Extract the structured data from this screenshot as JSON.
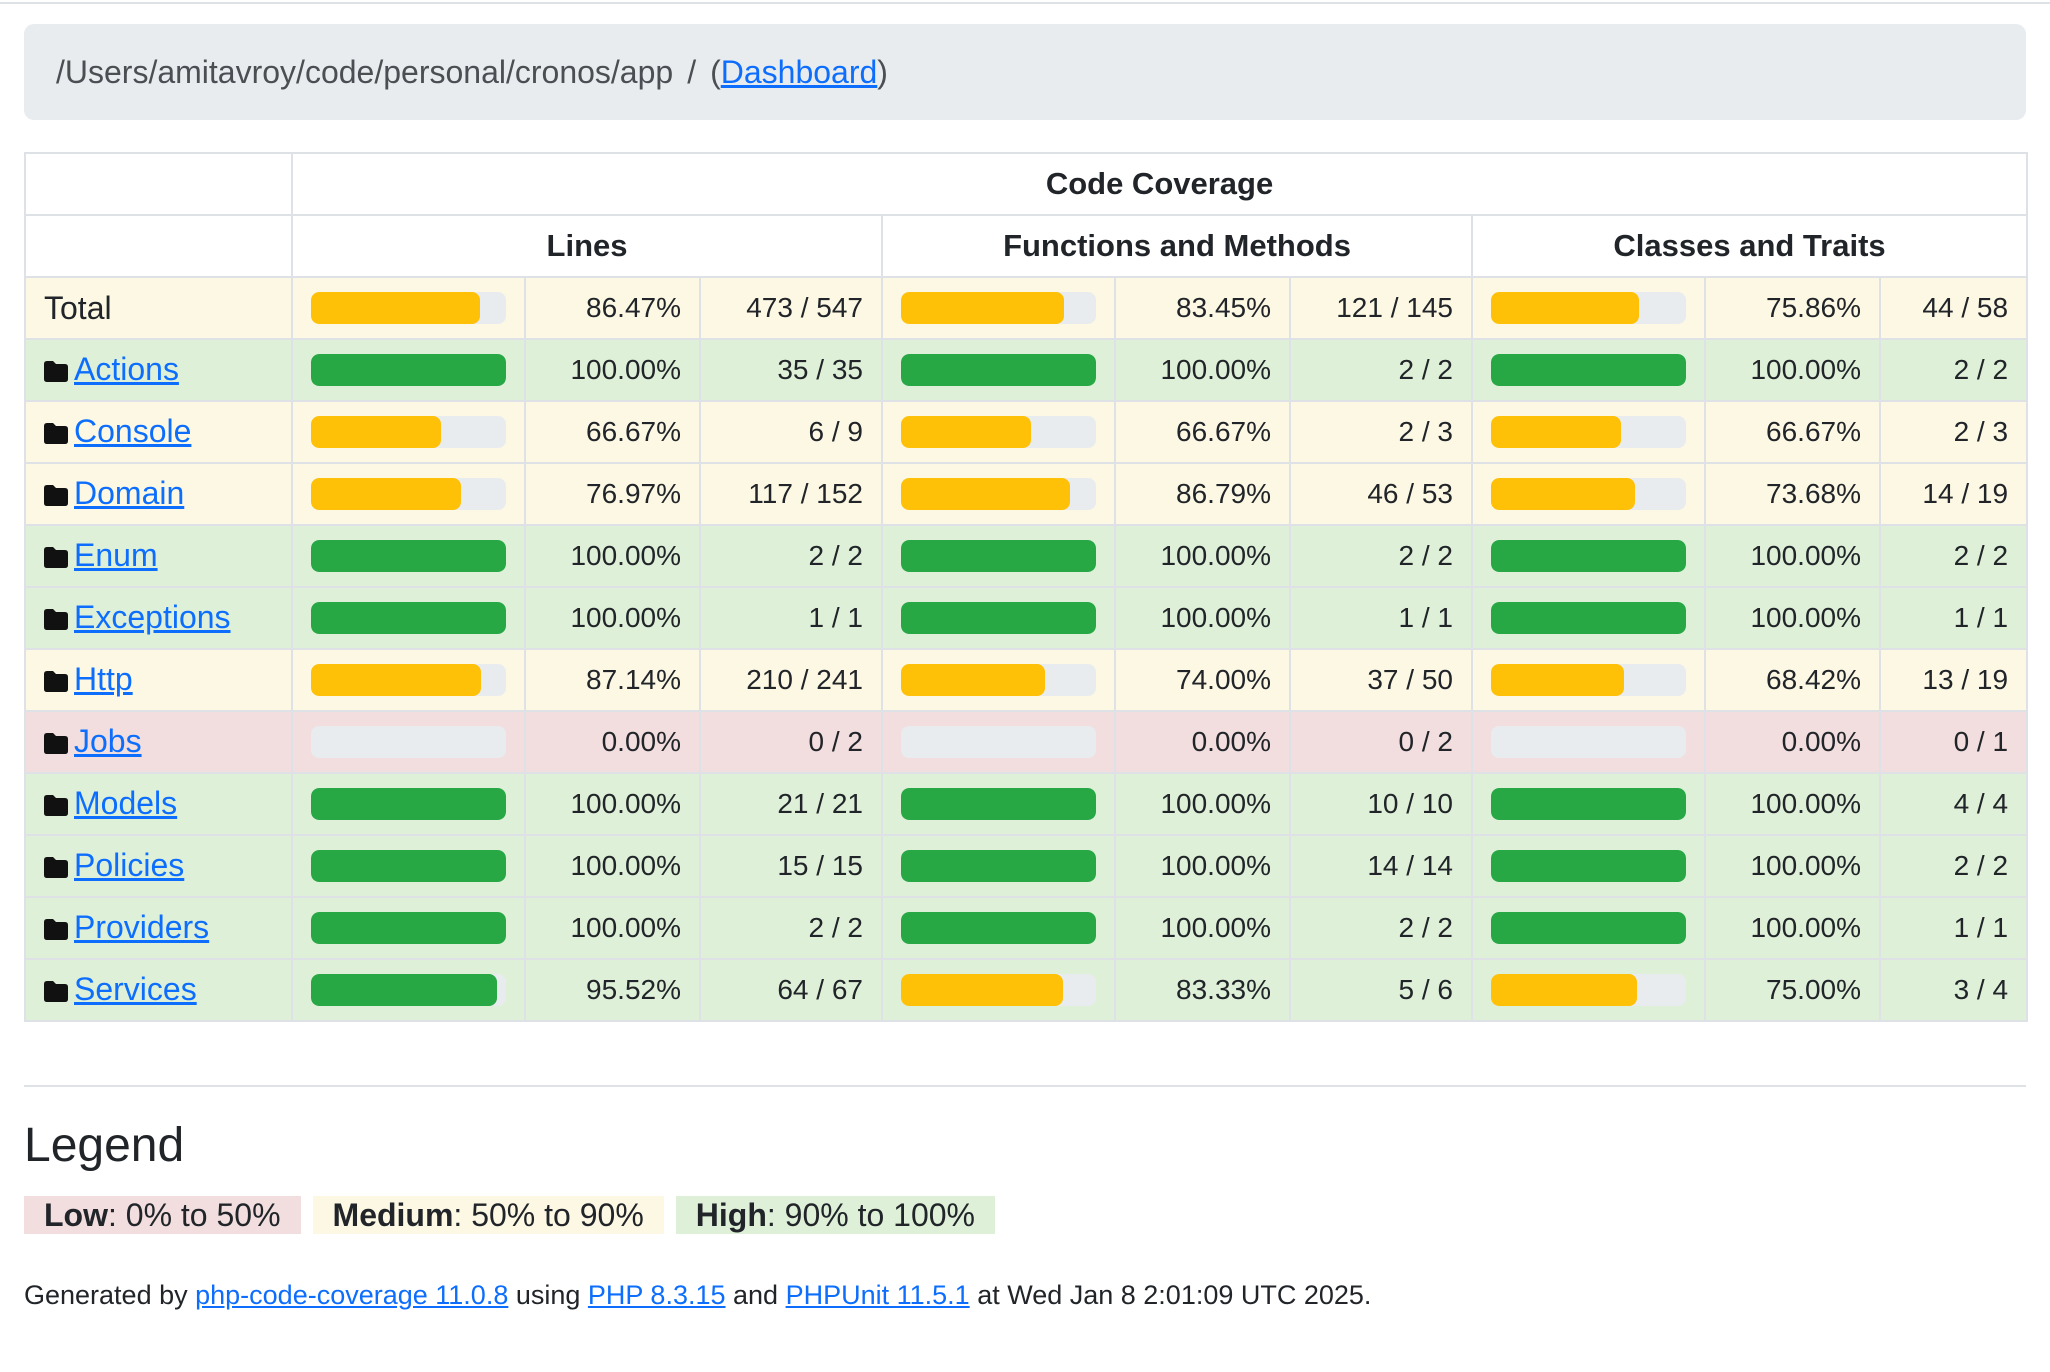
{
  "breadcrumb": {
    "path": "/Users/amitavroy/code/personal/cronos/app",
    "separator": "/",
    "dashboard_label": "Dashboard"
  },
  "table": {
    "header": {
      "code_coverage": "Code Coverage",
      "lines": "Lines",
      "functions": "Functions and Methods",
      "classes": "Classes and Traits"
    },
    "rows": [
      {
        "name": "Total",
        "link": false,
        "class": "warning",
        "lines_pct": 86.47,
        "lines_pct_text": "86.47%",
        "lines_count": "473 / 547",
        "lines_level": "warning",
        "funcs_pct": 83.45,
        "funcs_pct_text": "83.45%",
        "funcs_count": "121 / 145",
        "funcs_level": "warning",
        "classes_pct": 75.86,
        "classes_pct_text": "75.86%",
        "classes_count": "44 / 58",
        "classes_level": "warning"
      },
      {
        "name": "Actions",
        "link": true,
        "class": "success",
        "lines_pct": 100,
        "lines_pct_text": "100.00%",
        "lines_count": "35 / 35",
        "lines_level": "success",
        "funcs_pct": 100,
        "funcs_pct_text": "100.00%",
        "funcs_count": "2 / 2",
        "funcs_level": "success",
        "classes_pct": 100,
        "classes_pct_text": "100.00%",
        "classes_count": "2 / 2",
        "classes_level": "success"
      },
      {
        "name": "Console",
        "link": true,
        "class": "warning",
        "lines_pct": 66.67,
        "lines_pct_text": "66.67%",
        "lines_count": "6 / 9",
        "lines_level": "warning",
        "funcs_pct": 66.67,
        "funcs_pct_text": "66.67%",
        "funcs_count": "2 / 3",
        "funcs_level": "warning",
        "classes_pct": 66.67,
        "classes_pct_text": "66.67%",
        "classes_count": "2 / 3",
        "classes_level": "warning"
      },
      {
        "name": "Domain",
        "link": true,
        "class": "warning",
        "lines_pct": 76.97,
        "lines_pct_text": "76.97%",
        "lines_count": "117 / 152",
        "lines_level": "warning",
        "funcs_pct": 86.79,
        "funcs_pct_text": "86.79%",
        "funcs_count": "46 / 53",
        "funcs_level": "warning",
        "classes_pct": 73.68,
        "classes_pct_text": "73.68%",
        "classes_count": "14 / 19",
        "classes_level": "warning"
      },
      {
        "name": "Enum",
        "link": true,
        "class": "success",
        "lines_pct": 100,
        "lines_pct_text": "100.00%",
        "lines_count": "2 / 2",
        "lines_level": "success",
        "funcs_pct": 100,
        "funcs_pct_text": "100.00%",
        "funcs_count": "2 / 2",
        "funcs_level": "success",
        "classes_pct": 100,
        "classes_pct_text": "100.00%",
        "classes_count": "2 / 2",
        "classes_level": "success"
      },
      {
        "name": "Exceptions",
        "link": true,
        "class": "success",
        "lines_pct": 100,
        "lines_pct_text": "100.00%",
        "lines_count": "1 / 1",
        "lines_level": "success",
        "funcs_pct": 100,
        "funcs_pct_text": "100.00%",
        "funcs_count": "1 / 1",
        "funcs_level": "success",
        "classes_pct": 100,
        "classes_pct_text": "100.00%",
        "classes_count": "1 / 1",
        "classes_level": "success"
      },
      {
        "name": "Http",
        "link": true,
        "class": "warning",
        "lines_pct": 87.14,
        "lines_pct_text": "87.14%",
        "lines_count": "210 / 241",
        "lines_level": "warning",
        "funcs_pct": 74.0,
        "funcs_pct_text": "74.00%",
        "funcs_count": "37 / 50",
        "funcs_level": "warning",
        "classes_pct": 68.42,
        "classes_pct_text": "68.42%",
        "classes_count": "13 / 19",
        "classes_level": "warning"
      },
      {
        "name": "Jobs",
        "link": true,
        "class": "danger",
        "lines_pct": 0,
        "lines_pct_text": "0.00%",
        "lines_count": "0 / 2",
        "lines_level": "danger",
        "funcs_pct": 0,
        "funcs_pct_text": "0.00%",
        "funcs_count": "0 / 2",
        "funcs_level": "danger",
        "classes_pct": 0,
        "classes_pct_text": "0.00%",
        "classes_count": "0 / 1",
        "classes_level": "danger"
      },
      {
        "name": "Models",
        "link": true,
        "class": "success",
        "lines_pct": 100,
        "lines_pct_text": "100.00%",
        "lines_count": "21 / 21",
        "lines_level": "success",
        "funcs_pct": 100,
        "funcs_pct_text": "100.00%",
        "funcs_count": "10 / 10",
        "funcs_level": "success",
        "classes_pct": 100,
        "classes_pct_text": "100.00%",
        "classes_count": "4 / 4",
        "classes_level": "success"
      },
      {
        "name": "Policies",
        "link": true,
        "class": "success",
        "lines_pct": 100,
        "lines_pct_text": "100.00%",
        "lines_count": "15 / 15",
        "lines_level": "success",
        "funcs_pct": 100,
        "funcs_pct_text": "100.00%",
        "funcs_count": "14 / 14",
        "funcs_level": "success",
        "classes_pct": 100,
        "classes_pct_text": "100.00%",
        "classes_count": "2 / 2",
        "classes_level": "success"
      },
      {
        "name": "Providers",
        "link": true,
        "class": "success",
        "lines_pct": 100,
        "lines_pct_text": "100.00%",
        "lines_count": "2 / 2",
        "lines_level": "success",
        "funcs_pct": 100,
        "funcs_pct_text": "100.00%",
        "funcs_count": "2 / 2",
        "funcs_level": "success",
        "classes_pct": 100,
        "classes_pct_text": "100.00%",
        "classes_count": "1 / 1",
        "classes_level": "success"
      },
      {
        "name": "Services",
        "link": true,
        "class": "success",
        "lines_pct": 95.52,
        "lines_pct_text": "95.52%",
        "lines_count": "64 / 67",
        "lines_level": "success",
        "funcs_pct": 83.33,
        "funcs_pct_text": "83.33%",
        "funcs_count": "5 / 6",
        "funcs_level": "warning",
        "classes_pct": 75.0,
        "classes_pct_text": "75.00%",
        "classes_count": "3 / 4",
        "classes_level": "warning"
      }
    ]
  },
  "legend": {
    "title": "Legend",
    "low_label": "Low",
    "low_range": ": 0% to 50%",
    "medium_label": "Medium",
    "medium_range": ": 50% to 90%",
    "high_label": "High",
    "high_range": ": 90% to 100%"
  },
  "footer": {
    "prefix": "Generated by ",
    "tool_link": "php-code-coverage 11.0.8",
    "using": " using ",
    "php_link": "PHP 8.3.15",
    "and": " and ",
    "phpunit_link": "PHPUnit 11.5.1",
    "suffix": " at Wed Jan 8 2:01:09 UTC 2025."
  },
  "colors": {
    "success": "#28a745",
    "warning": "#ffc107",
    "danger": "#dc3545",
    "row_success": "#dff0d8",
    "row_warning": "#fcf8e3",
    "row_danger": "#f2dede",
    "link": "#0d6efd"
  },
  "icons": {
    "folder": "folder-icon"
  }
}
